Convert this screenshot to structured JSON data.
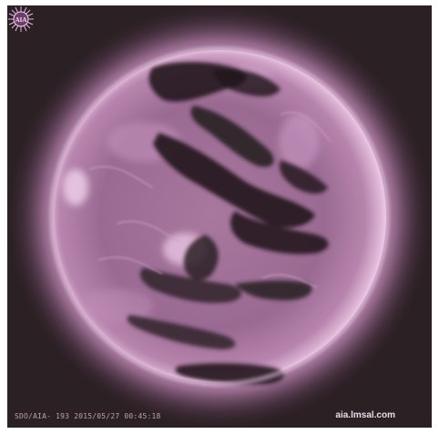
{
  "image": {
    "subject": "sun-coronal-image",
    "colors": {
      "background": "#2b2024",
      "corona": "#e6b8e0",
      "disk": "#9a6a93",
      "coronal_hole": "#241a1f"
    }
  },
  "captions": {
    "instrument_timestamp": "SDO/AIA- 193 2015/05/27 00:45:18",
    "source": "aia.lmsal.com"
  },
  "logo": {
    "text": "AIA",
    "icon": "aia-sunburst-logo"
  }
}
